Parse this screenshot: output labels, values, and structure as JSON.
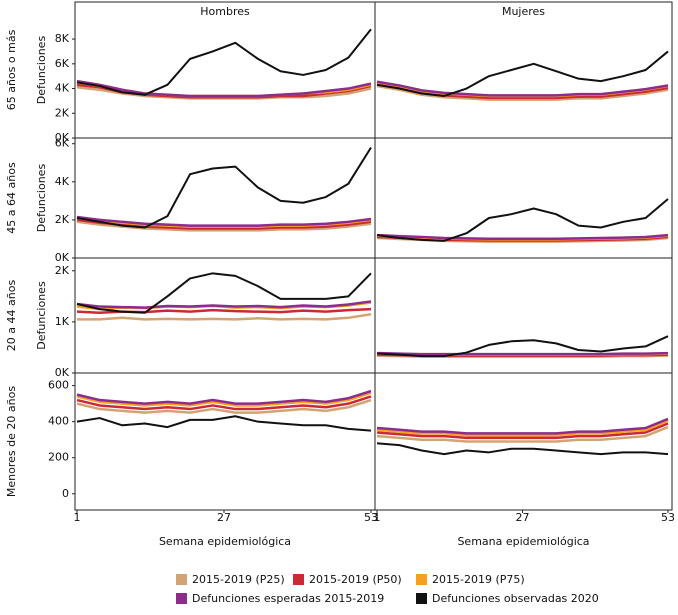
{
  "chart_data": [
    {
      "type": "line",
      "title": "Hombres",
      "row_label": "65 años o más",
      "ylabel": "Defunciones",
      "x": [
        1,
        5,
        9,
        13,
        17,
        21,
        25,
        29,
        33,
        37,
        41,
        45,
        49,
        53
      ],
      "xlim": [
        1,
        53
      ],
      "ylim": [
        0,
        11000
      ],
      "yticks": [
        {
          "value": 0,
          "label": "0K"
        },
        {
          "value": 2000,
          "label": "2K"
        },
        {
          "value": 4000,
          "label": "4K"
        },
        {
          "value": 6000,
          "label": "6K"
        },
        {
          "value": 8000,
          "label": "8K"
        }
      ],
      "legend": "bottom",
      "series": [
        {
          "name": "2015-2019 (P25)",
          "color": "#d4a373",
          "values": [
            4100,
            3900,
            3600,
            3400,
            3300,
            3200,
            3200,
            3200,
            3200,
            3300,
            3300,
            3400,
            3600,
            4000
          ]
        },
        {
          "name": "2015-2019 (P50)",
          "color": "#cc2936",
          "values": [
            4300,
            4100,
            3700,
            3500,
            3400,
            3300,
            3300,
            3300,
            3300,
            3400,
            3400,
            3600,
            3800,
            4200
          ]
        },
        {
          "name": "2015-2019 (P75)",
          "color": "#f5a01f",
          "values": [
            4500,
            4200,
            3800,
            3600,
            3500,
            3400,
            3400,
            3400,
            3400,
            3500,
            3600,
            3700,
            3900,
            4300
          ]
        },
        {
          "name": "Defunciones esperadas 2015-2019",
          "color": "#8e2c8e",
          "values": [
            4600,
            4300,
            3900,
            3600,
            3500,
            3400,
            3400,
            3400,
            3400,
            3500,
            3600,
            3800,
            4000,
            4400
          ]
        },
        {
          "name": "Defunciones observadas 2020",
          "color": "#111111",
          "values": [
            4500,
            4200,
            3700,
            3500,
            4300,
            6400,
            7000,
            7700,
            6400,
            5400,
            5100,
            5500,
            6500,
            8800
          ]
        }
      ]
    },
    {
      "type": "line",
      "title": "Mujeres",
      "x": [
        1,
        5,
        9,
        13,
        17,
        21,
        25,
        29,
        33,
        37,
        41,
        45,
        49,
        53
      ],
      "xlim": [
        1,
        53
      ],
      "ylim": [
        0,
        11000
      ],
      "series": [
        {
          "color": "#d4a373",
          "values": [
            4200,
            3900,
            3500,
            3300,
            3200,
            3100,
            3100,
            3100,
            3100,
            3200,
            3200,
            3400,
            3600,
            3900
          ]
        },
        {
          "color": "#cc2936",
          "values": [
            4350,
            4050,
            3650,
            3450,
            3350,
            3250,
            3250,
            3250,
            3250,
            3350,
            3350,
            3550,
            3750,
            4050
          ]
        },
        {
          "color": "#f5a01f",
          "values": [
            4500,
            4200,
            3800,
            3600,
            3500,
            3400,
            3400,
            3400,
            3400,
            3500,
            3500,
            3700,
            3900,
            4200
          ]
        },
        {
          "color": "#8e2c8e",
          "values": [
            4550,
            4250,
            3850,
            3650,
            3550,
            3450,
            3450,
            3450,
            3450,
            3550,
            3550,
            3750,
            3950,
            4250
          ]
        },
        {
          "color": "#111111",
          "values": [
            4300,
            4000,
            3600,
            3400,
            4000,
            5000,
            5500,
            6000,
            5400,
            4800,
            4600,
            5000,
            5500,
            7000
          ]
        }
      ]
    },
    {
      "type": "line",
      "row_label": "45 a 64 años",
      "ylabel": "Defunciones",
      "x": [
        1,
        5,
        9,
        13,
        17,
        21,
        25,
        29,
        33,
        37,
        41,
        45,
        49,
        53
      ],
      "xlim": [
        1,
        53
      ],
      "ylim": [
        0,
        6300
      ],
      "yticks": [
        {
          "value": 0,
          "label": "0K"
        },
        {
          "value": 2000,
          "label": "2K"
        },
        {
          "value": 4000,
          "label": "4K"
        },
        {
          "value": 6000,
          "label": "6K"
        }
      ],
      "series": [
        {
          "color": "#d4a373",
          "values": [
            1900,
            1750,
            1650,
            1550,
            1500,
            1450,
            1450,
            1450,
            1450,
            1500,
            1500,
            1550,
            1650,
            1800
          ]
        },
        {
          "color": "#cc2936",
          "values": [
            2000,
            1850,
            1750,
            1650,
            1600,
            1550,
            1550,
            1550,
            1550,
            1600,
            1600,
            1650,
            1750,
            1900
          ]
        },
        {
          "color": "#f5a01f",
          "values": [
            2100,
            1950,
            1850,
            1750,
            1700,
            1650,
            1650,
            1650,
            1650,
            1700,
            1700,
            1750,
            1850,
            2000
          ]
        },
        {
          "color": "#8e2c8e",
          "values": [
            2150,
            2000,
            1900,
            1800,
            1750,
            1700,
            1700,
            1700,
            1700,
            1750,
            1750,
            1800,
            1900,
            2050
          ]
        },
        {
          "color": "#111111",
          "values": [
            2100,
            1900,
            1700,
            1600,
            2200,
            4400,
            4700,
            4800,
            3700,
            3000,
            2900,
            3200,
            3900,
            5800
          ]
        }
      ]
    },
    {
      "type": "line",
      "x": [
        1,
        5,
        9,
        13,
        17,
        21,
        25,
        29,
        33,
        37,
        41,
        45,
        49,
        53
      ],
      "xlim": [
        1,
        53
      ],
      "ylim": [
        0,
        6300
      ],
      "series": [
        {
          "color": "#d4a373",
          "values": [
            1050,
            1000,
            950,
            900,
            880,
            860,
            860,
            860,
            860,
            880,
            900,
            920,
            950,
            1050
          ]
        },
        {
          "color": "#cc2936",
          "values": [
            1110,
            1060,
            1010,
            960,
            940,
            920,
            920,
            920,
            920,
            940,
            960,
            980,
            1010,
            1110
          ]
        },
        {
          "color": "#f5a01f",
          "values": [
            1170,
            1120,
            1070,
            1020,
            1000,
            980,
            980,
            980,
            980,
            1000,
            1020,
            1040,
            1070,
            1170
          ]
        },
        {
          "color": "#8e2c8e",
          "values": [
            1200,
            1150,
            1100,
            1050,
            1030,
            1010,
            1010,
            1010,
            1010,
            1030,
            1050,
            1070,
            1100,
            1200
          ]
        },
        {
          "color": "#111111",
          "values": [
            1200,
            1050,
            950,
            900,
            1300,
            2100,
            2300,
            2600,
            2300,
            1700,
            1600,
            1900,
            2100,
            3100
          ]
        }
      ]
    },
    {
      "type": "line",
      "row_label": "20 a 44 años",
      "ylabel": "Defunciones",
      "x": [
        1,
        5,
        9,
        13,
        17,
        21,
        25,
        29,
        33,
        37,
        41,
        45,
        49,
        53
      ],
      "xlim": [
        1,
        53
      ],
      "ylim": [
        0,
        2250
      ],
      "yticks": [
        {
          "value": 0,
          "label": "0K"
        },
        {
          "value": 1000,
          "label": "1K"
        },
        {
          "value": 2000,
          "label": "2K"
        }
      ],
      "series": [
        {
          "color": "#d4a373",
          "values": [
            1050,
            1050,
            1080,
            1050,
            1060,
            1050,
            1060,
            1050,
            1070,
            1050,
            1060,
            1050,
            1080,
            1150
          ]
        },
        {
          "color": "#cc2936",
          "values": [
            1200,
            1180,
            1200,
            1190,
            1220,
            1200,
            1230,
            1210,
            1200,
            1190,
            1220,
            1200,
            1230,
            1250
          ]
        },
        {
          "color": "#f5a01f",
          "values": [
            1300,
            1250,
            1280,
            1270,
            1300,
            1290,
            1310,
            1280,
            1290,
            1270,
            1300,
            1290,
            1320,
            1380
          ]
        },
        {
          "color": "#8e2c8e",
          "values": [
            1350,
            1300,
            1290,
            1280,
            1310,
            1300,
            1320,
            1300,
            1310,
            1290,
            1320,
            1300,
            1340,
            1400
          ]
        },
        {
          "color": "#111111",
          "values": [
            1350,
            1250,
            1200,
            1180,
            1500,
            1850,
            1950,
            1900,
            1700,
            1450,
            1450,
            1450,
            1500,
            1950
          ]
        }
      ]
    },
    {
      "type": "line",
      "x": [
        1,
        5,
        9,
        13,
        17,
        21,
        25,
        29,
        33,
        37,
        41,
        45,
        49,
        53
      ],
      "xlim": [
        1,
        53
      ],
      "ylim": [
        0,
        2250
      ],
      "series": [
        {
          "color": "#d4a373",
          "values": [
            340,
            330,
            320,
            320,
            320,
            320,
            320,
            320,
            320,
            320,
            320,
            330,
            330,
            340
          ]
        },
        {
          "color": "#cc2936",
          "values": [
            360,
            350,
            340,
            340,
            340,
            340,
            340,
            340,
            340,
            340,
            340,
            350,
            350,
            360
          ]
        },
        {
          "color": "#f5a01f",
          "values": [
            380,
            370,
            360,
            360,
            360,
            360,
            360,
            360,
            360,
            360,
            360,
            370,
            370,
            380
          ]
        },
        {
          "color": "#8e2c8e",
          "values": [
            390,
            380,
            370,
            370,
            370,
            370,
            370,
            370,
            370,
            370,
            370,
            380,
            380,
            390
          ]
        },
        {
          "color": "#111111",
          "values": [
            380,
            360,
            330,
            330,
            400,
            550,
            620,
            640,
            580,
            450,
            420,
            480,
            520,
            720
          ]
        }
      ]
    },
    {
      "type": "line",
      "row_label": "Menores de 20 años",
      "xlabel": "Semana epidemiológica",
      "x": [
        1,
        5,
        9,
        13,
        17,
        21,
        25,
        29,
        33,
        37,
        41,
        45,
        49,
        53
      ],
      "xlim": [
        1,
        53
      ],
      "ylim": [
        -90,
        670
      ],
      "xticks": [
        1,
        27,
        53
      ],
      "yticks": [
        0,
        200,
        400,
        600
      ],
      "series": [
        {
          "color": "#d4a373",
          "values": [
            500,
            470,
            460,
            450,
            460,
            450,
            470,
            450,
            450,
            460,
            470,
            460,
            480,
            520
          ]
        },
        {
          "color": "#cc2936",
          "values": [
            520,
            490,
            480,
            470,
            480,
            470,
            490,
            470,
            470,
            480,
            490,
            480,
            500,
            540
          ]
        },
        {
          "color": "#f5a01f",
          "values": [
            540,
            510,
            500,
            490,
            500,
            490,
            510,
            490,
            490,
            500,
            510,
            500,
            520,
            560
          ]
        },
        {
          "color": "#8e2c8e",
          "values": [
            550,
            520,
            510,
            500,
            510,
            500,
            520,
            500,
            500,
            510,
            520,
            510,
            530,
            570
          ]
        },
        {
          "color": "#111111",
          "values": [
            400,
            420,
            380,
            390,
            370,
            410,
            410,
            430,
            400,
            390,
            380,
            380,
            360,
            350
          ]
        }
      ]
    },
    {
      "type": "line",
      "xlabel": "Semana epidemiológica",
      "x": [
        1,
        5,
        9,
        13,
        17,
        21,
        25,
        29,
        33,
        37,
        41,
        45,
        49,
        53
      ],
      "xlim": [
        1,
        53
      ],
      "ylim": [
        -90,
        670
      ],
      "xticks": [
        1,
        27,
        53
      ],
      "series": [
        {
          "color": "#d4a373",
          "values": [
            320,
            310,
            300,
            300,
            290,
            290,
            290,
            290,
            290,
            300,
            300,
            310,
            320,
            370
          ]
        },
        {
          "color": "#cc2936",
          "values": [
            340,
            330,
            320,
            320,
            310,
            310,
            310,
            310,
            310,
            320,
            320,
            330,
            340,
            390
          ]
        },
        {
          "color": "#f5a01f",
          "values": [
            355,
            345,
            335,
            335,
            325,
            325,
            325,
            325,
            325,
            335,
            335,
            345,
            355,
            405
          ]
        },
        {
          "color": "#8e2c8e",
          "values": [
            365,
            355,
            345,
            345,
            335,
            335,
            335,
            335,
            335,
            345,
            345,
            355,
            365,
            415
          ]
        },
        {
          "color": "#111111",
          "values": [
            280,
            270,
            240,
            220,
            240,
            230,
            250,
            250,
            240,
            230,
            220,
            230,
            230,
            220
          ]
        }
      ]
    }
  ]
}
